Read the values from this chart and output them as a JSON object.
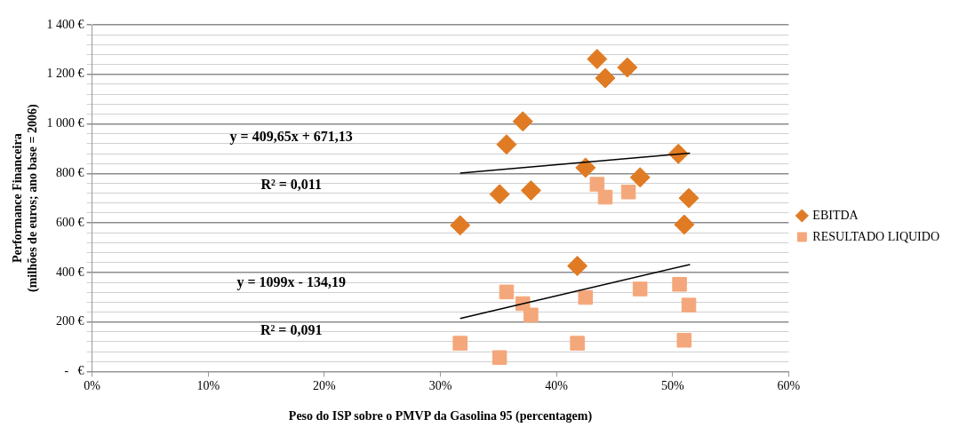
{
  "chart_data": {
    "type": "scatter",
    "xlabel": "Peso do ISP sobre o PMVP da Gasolina 95 (percentagem)",
    "ylabel": "Performance Financeira\n(milhões de euros; ano base = 2006)",
    "xlim": [
      0,
      60
    ],
    "xticks": [
      {
        "value": 0,
        "label": "0%"
      },
      {
        "value": 10,
        "label": "10%"
      },
      {
        "value": 20,
        "label": "20%"
      },
      {
        "value": 30,
        "label": "30%"
      },
      {
        "value": 40,
        "label": "40%"
      },
      {
        "value": 50,
        "label": "50%"
      },
      {
        "value": 60,
        "label": "60%"
      }
    ],
    "ylim": [
      0,
      1400
    ],
    "yticks": [
      {
        "value": 0,
        "label": "-   €"
      },
      {
        "value": 40,
        "label": null
      },
      {
        "value": 80,
        "label": null
      },
      {
        "value": 120,
        "label": null
      },
      {
        "value": 160,
        "label": null
      },
      {
        "value": 200,
        "label": "200 €"
      },
      {
        "value": 240,
        "label": null
      },
      {
        "value": 280,
        "label": null
      },
      {
        "value": 320,
        "label": null
      },
      {
        "value": 360,
        "label": null
      },
      {
        "value": 400,
        "label": "400 €"
      },
      {
        "value": 440,
        "label": null
      },
      {
        "value": 480,
        "label": null
      },
      {
        "value": 520,
        "label": null
      },
      {
        "value": 560,
        "label": null
      },
      {
        "value": 600,
        "label": "600 €"
      },
      {
        "value": 640,
        "label": null
      },
      {
        "value": 680,
        "label": null
      },
      {
        "value": 720,
        "label": null
      },
      {
        "value": 760,
        "label": null
      },
      {
        "value": 800,
        "label": "800 €"
      },
      {
        "value": 840,
        "label": null
      },
      {
        "value": 880,
        "label": null
      },
      {
        "value": 920,
        "label": null
      },
      {
        "value": 960,
        "label": null
      },
      {
        "value": 1000,
        "label": "1 000 €"
      },
      {
        "value": 1040,
        "label": null
      },
      {
        "value": 1080,
        "label": null
      },
      {
        "value": 1120,
        "label": null
      },
      {
        "value": 1160,
        "label": null
      },
      {
        "value": 1200,
        "label": "1 200 €"
      },
      {
        "value": 1240,
        "label": null
      },
      {
        "value": 1280,
        "label": null
      },
      {
        "value": 1320,
        "label": null
      },
      {
        "value": 1360,
        "label": null
      },
      {
        "value": 1400,
        "label": "1 400 €"
      }
    ],
    "grid": "y",
    "legend": "right",
    "series": [
      {
        "name": "EBITDA",
        "color": "#e07b24",
        "marker": "diamond",
        "x": [
          31.7,
          35.1,
          35.7,
          37.1,
          37.8,
          41.8,
          42.5,
          43.5,
          44.2,
          46.1,
          47.2,
          50.5,
          51.4,
          51.0
        ],
        "values": [
          590,
          716,
          917,
          1010,
          731,
          426,
          823,
          1262,
          1185,
          1228,
          784,
          879,
          700,
          593
        ]
      },
      {
        "name": "RESULTADO LIQUIDO",
        "color": "#f4a77a",
        "marker": "square",
        "x": [
          31.7,
          35.1,
          35.7,
          37.1,
          37.8,
          41.8,
          42.5,
          43.5,
          44.2,
          46.2,
          47.2,
          50.6,
          51.4,
          51.0
        ],
        "values": [
          114,
          56,
          321,
          274,
          228,
          114,
          299,
          756,
          704,
          725,
          333,
          352,
          268,
          126
        ]
      },
      {
        "type": "line",
        "color": "#000000",
        "marker": "none",
        "x": [
          31.7,
          51.5
        ],
        "values": [
          801,
          882
        ]
      },
      {
        "type": "line",
        "color": "#000000",
        "marker": "none",
        "x": [
          31.7,
          51.5
        ],
        "values": [
          214,
          432
        ]
      }
    ],
    "annotations": [
      "y = 409,65x + 671,13",
      "R² = 0,011",
      "y = 1099x - 134,19",
      "R² = 0,091"
    ]
  }
}
